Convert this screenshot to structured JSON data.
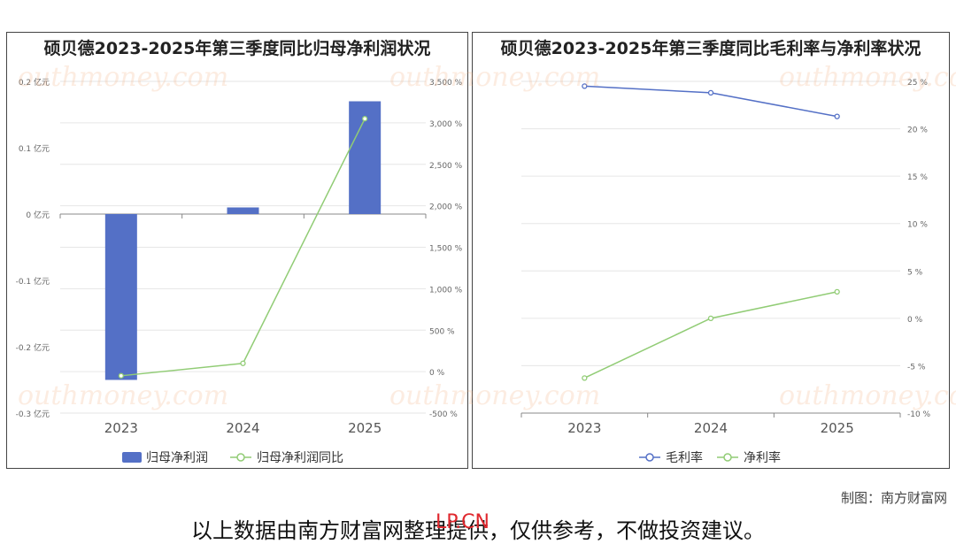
{
  "watermark": "outhmoney.com",
  "credit": "制图：南方财富网",
  "disclaimer": "以上数据由南方财富网整理提供，仅供参考，不做投资建议。",
  "overlay_text": "LP.CN",
  "colors": {
    "blue": "#5470c6",
    "green": "#91cc75"
  },
  "chart_data": [
    {
      "type": "bar",
      "title": "硕贝德2023-2025年第三季度同比归母净利润状况",
      "categories": [
        "2023",
        "2024",
        "2025"
      ],
      "series": [
        {
          "name": "归母净利润",
          "type": "bar",
          "axis": "left",
          "values": [
            -0.25,
            0.01,
            0.17
          ]
        },
        {
          "name": "归母净利润同比",
          "type": "line",
          "axis": "right",
          "values": [
            -50,
            100,
            3050
          ]
        }
      ],
      "y_left": {
        "min": -0.3,
        "max": 0.2,
        "ticks": [
          -0.3,
          -0.2,
          -0.1,
          0,
          0.1,
          0.2
        ],
        "tick_labels": [
          "-0.3 亿元",
          "-0.2 亿元",
          "-0.1 亿元",
          "0 亿元",
          "0.1 亿元",
          "0.2 亿元"
        ]
      },
      "y_right": {
        "min": -500,
        "max": 3500,
        "ticks": [
          -500,
          0,
          500,
          1000,
          1500,
          2000,
          2500,
          3000,
          3500
        ],
        "tick_labels": [
          "-500 %",
          "0 %",
          "500 %",
          "1,000 %",
          "1,500 %",
          "2,000 %",
          "2,500 %",
          "3,000 %",
          "3,500 %"
        ]
      },
      "grid": true,
      "legend": "bottom"
    },
    {
      "type": "line",
      "title": "硕贝德2023-2025年第三季度同比毛利率与净利率状况",
      "categories": [
        "2023",
        "2024",
        "2025"
      ],
      "series": [
        {
          "name": "毛利率",
          "axis": "right",
          "values": [
            24.5,
            23.8,
            21.3
          ]
        },
        {
          "name": "净利率",
          "axis": "right",
          "values": [
            -6.3,
            0,
            2.8
          ]
        }
      ],
      "y_right": {
        "min": -10,
        "max": 25,
        "ticks": [
          -10,
          -5,
          0,
          5,
          10,
          15,
          20,
          25
        ],
        "tick_labels": [
          "-10 %",
          "-5 %",
          "0 %",
          "5 %",
          "10 %",
          "15 %",
          "20 %",
          "25 %"
        ]
      },
      "grid": true,
      "legend": "bottom"
    }
  ]
}
